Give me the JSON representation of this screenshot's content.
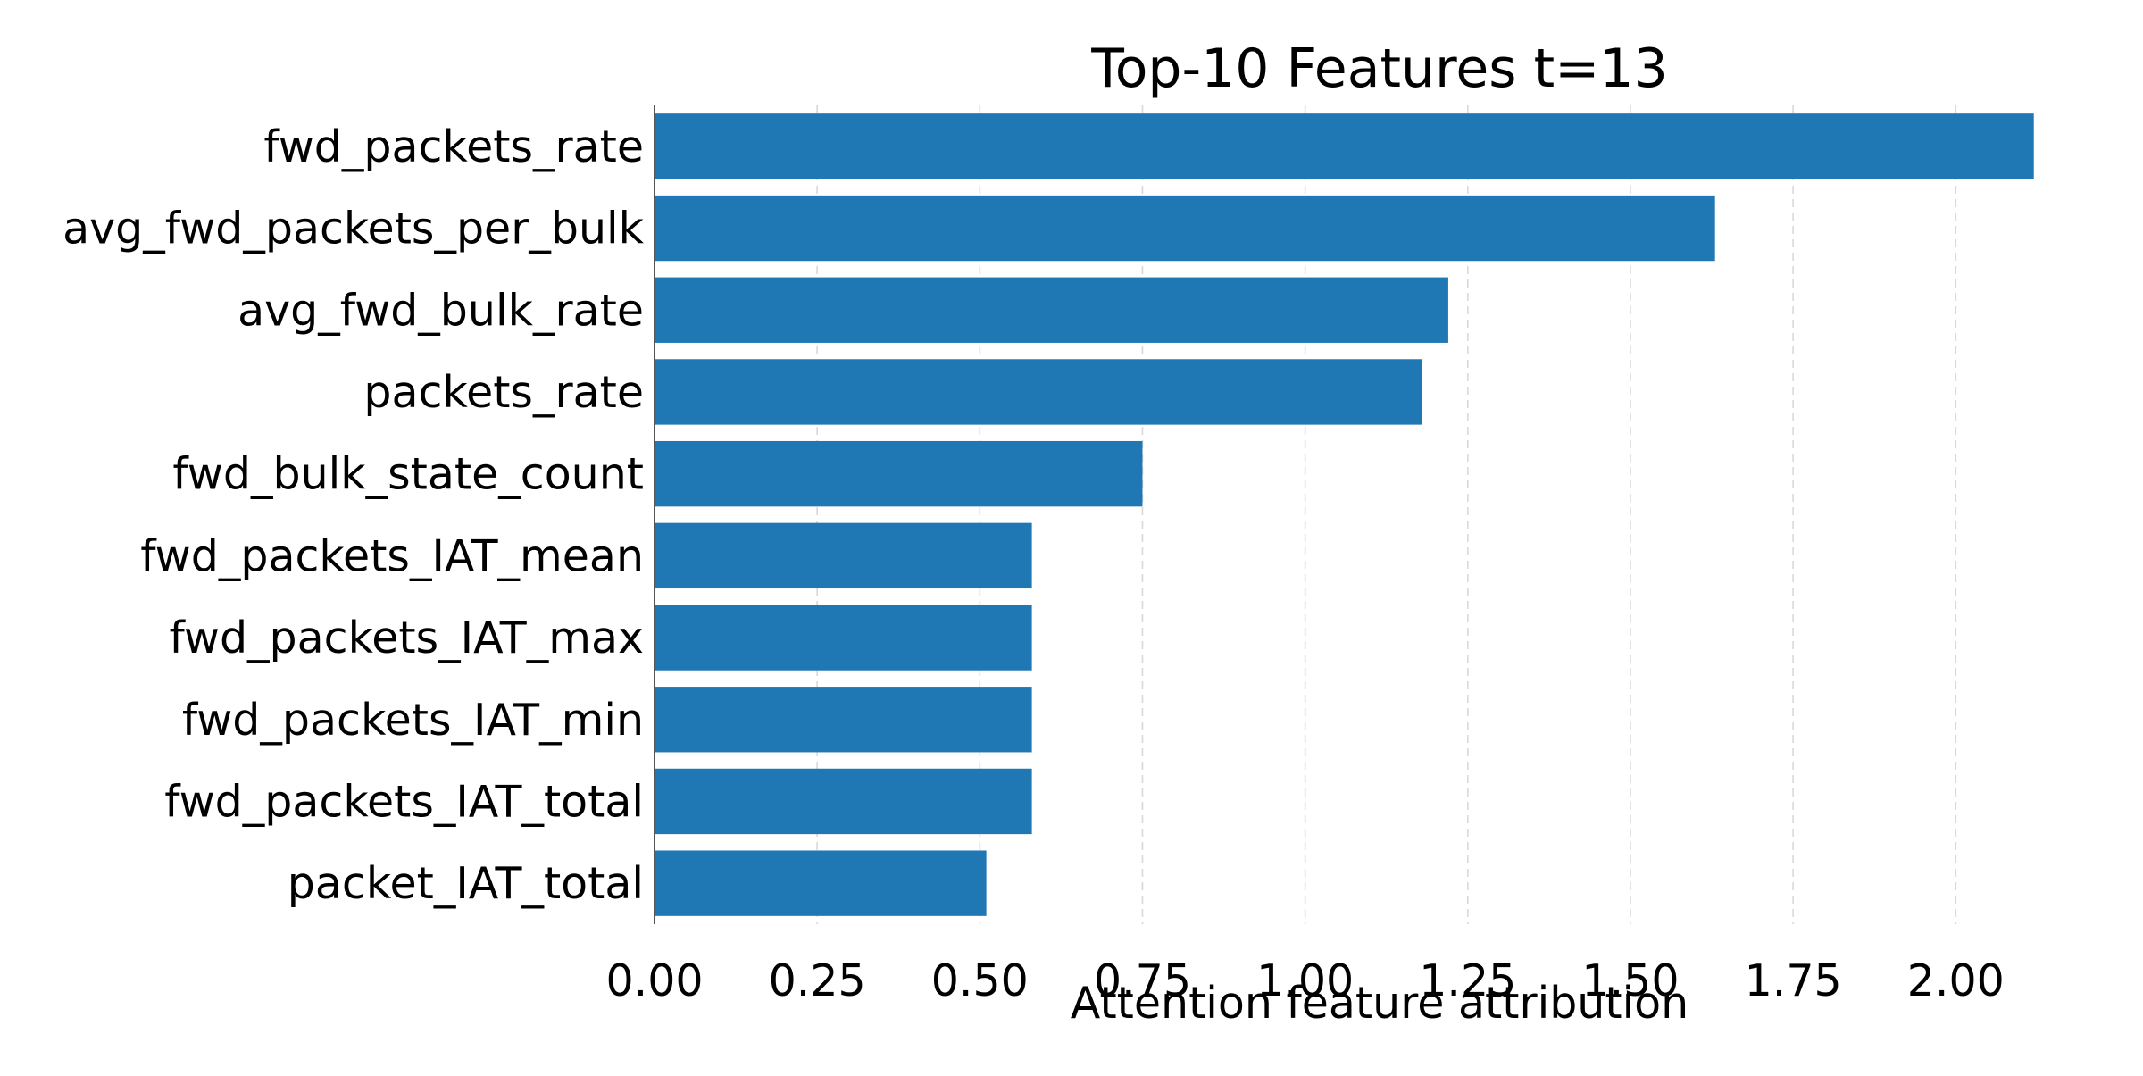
{
  "chart_data": {
    "type": "bar",
    "orientation": "horizontal",
    "title": "Top-10 Features t=13",
    "xlabel": "Attention feature attribution",
    "ylabel": "",
    "xlim": [
      0,
      2.13
    ],
    "xticks": [
      "0.00",
      "0.25",
      "0.50",
      "0.75",
      "1.00",
      "1.25",
      "1.50",
      "1.75",
      "2.00"
    ],
    "grid": "vertical dashed",
    "legend": "none",
    "categories": [
      "fwd_packets_rate",
      "avg_fwd_packets_per_bulk",
      "avg_fwd_bulk_rate",
      "packets_rate",
      "fwd_bulk_state_count",
      "fwd_packets_IAT_mean",
      "fwd_packets_IAT_max",
      "fwd_packets_IAT_min",
      "fwd_packets_IAT_total",
      "packet_IAT_total"
    ],
    "values": [
      2.12,
      1.63,
      1.22,
      1.18,
      0.75,
      0.58,
      0.58,
      0.58,
      0.58,
      0.51
    ],
    "bar_color": "#1f77b4"
  }
}
